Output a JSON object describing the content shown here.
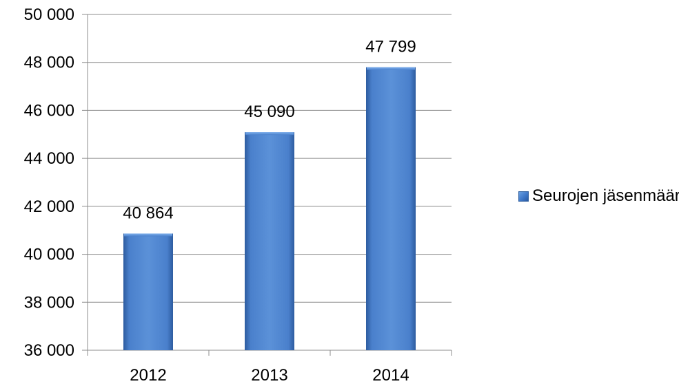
{
  "chart_data": {
    "type": "bar",
    "categories": [
      "2012",
      "2013",
      "2014"
    ],
    "series": [
      {
        "name": "Seurojen jäsenmäärät",
        "values": [
          40864,
          45090,
          47799
        ]
      }
    ],
    "data_labels": [
      "40 864",
      "45 090",
      "47 799"
    ],
    "y_ticks": [
      36000,
      38000,
      40000,
      42000,
      44000,
      46000,
      48000,
      50000
    ],
    "y_tick_labels": [
      "36 000",
      "38 000",
      "40 000",
      "42 000",
      "44 000",
      "46 000",
      "48 000",
      "50 000"
    ],
    "ylim": [
      36000,
      50000
    ],
    "grid": true,
    "legend_position": "right",
    "bar_color": "#4a7fc9",
    "title": "",
    "xlabel": "",
    "ylabel": ""
  }
}
